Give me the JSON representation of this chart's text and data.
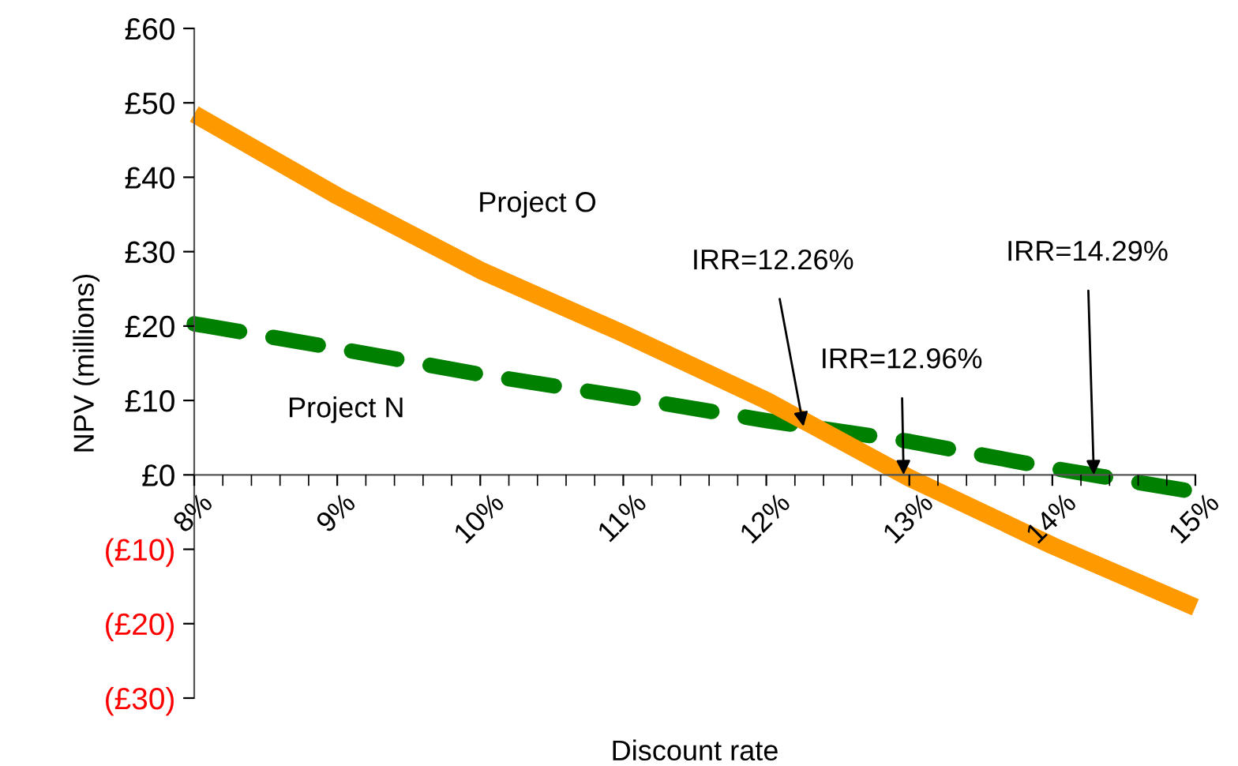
{
  "chart_data": {
    "type": "line",
    "xlabel": "Discount rate",
    "ylabel": "NPV (millions)",
    "x": [
      8,
      9,
      10,
      11,
      12,
      13,
      14,
      15
    ],
    "series": [
      {
        "name": "Project O",
        "color": "#ff9900",
        "line_style": "solid",
        "values": [
          48.5,
          37.5,
          27.5,
          19,
          10,
          -0.4,
          -9.5,
          -17.8
        ]
      },
      {
        "name": "Project N",
        "color": "#008000",
        "line_style": "dashed",
        "values": [
          20.3,
          17,
          13.5,
          10.5,
          7.3,
          4.5,
          0.9,
          -2.3
        ]
      }
    ],
    "xlim": [
      8,
      15
    ],
    "xticks": [
      {
        "value": 8,
        "label": "8%"
      },
      {
        "value": 9,
        "label": "9%"
      },
      {
        "value": 10,
        "label": "10%"
      },
      {
        "value": 11,
        "label": "11%"
      },
      {
        "value": 12,
        "label": "12%"
      },
      {
        "value": 13,
        "label": "13%"
      },
      {
        "value": 14,
        "label": "14%"
      },
      {
        "value": 15,
        "label": "15%"
      }
    ],
    "ylim": [
      -30,
      60
    ],
    "yticks": [
      {
        "value": -30,
        "label": "(£30)"
      },
      {
        "value": -20,
        "label": "(£20)"
      },
      {
        "value": -10,
        "label": "(£10)"
      },
      {
        "value": 0,
        "label": "£0"
      },
      {
        "value": 10,
        "label": "£10"
      },
      {
        "value": 20,
        "label": "£20"
      },
      {
        "value": 30,
        "label": "£30"
      },
      {
        "value": 40,
        "label": "£40"
      },
      {
        "value": 50,
        "label": "£50"
      },
      {
        "value": 60,
        "label": "£60"
      }
    ],
    "annotations": [
      {
        "text": "IRR=12.26%",
        "x": 12.26,
        "y": 6.5
      },
      {
        "text": "IRR=12.96%",
        "x": 12.96,
        "y": 0
      },
      {
        "text": "IRR=14.29%",
        "x": 14.29,
        "y": 0
      }
    ],
    "grid": false,
    "legend": false,
    "marker": "none"
  }
}
